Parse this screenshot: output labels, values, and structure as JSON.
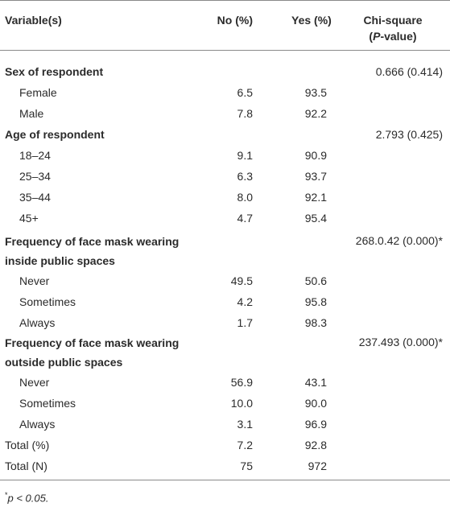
{
  "table": {
    "headers": {
      "variable": "Variable(s)",
      "no": "No (%)",
      "yes": "Yes (%)",
      "chi_line1": "Chi-square",
      "chi_line2_italic": "P",
      "chi_line2_rest": "-value)",
      "chi_line2_open": "("
    },
    "sex": {
      "label": "Sex of respondent",
      "chi": "0.666 (0.414)",
      "rows": [
        {
          "label": "Female",
          "no": "6.5",
          "yes": "93.5"
        },
        {
          "label": "Male",
          "no": "7.8",
          "yes": "92.2"
        }
      ]
    },
    "age": {
      "label": "Age of respondent",
      "chi": "2.793 (0.425)",
      "rows": [
        {
          "label": "18–24",
          "no": "9.1",
          "yes": "90.9"
        },
        {
          "label": "25–34",
          "no": "6.3",
          "yes": "93.7"
        },
        {
          "label": "35–44",
          "no": "8.0",
          "yes": "92.1"
        },
        {
          "label": "45+",
          "no": "4.7",
          "yes": "95.4"
        }
      ]
    },
    "inside": {
      "label_line1": "Frequency of face mask wearing",
      "label_line2": "inside public spaces",
      "chi": "268.0.42 (0.000)*",
      "rows": [
        {
          "label": "Never",
          "no": "49.5",
          "yes": "50.6"
        },
        {
          "label": "Sometimes",
          "no": "4.2",
          "yes": "95.8"
        },
        {
          "label": "Always",
          "no": "1.7",
          "yes": "98.3"
        }
      ]
    },
    "outside": {
      "label_line1": "Frequency of face mask wearing",
      "label_line2": "outside public spaces",
      "chi": "237.493 (0.000)*",
      "rows": [
        {
          "label": "Never",
          "no": "56.9",
          "yes": "43.1"
        },
        {
          "label": "Sometimes",
          "no": "10.0",
          "yes": "90.0"
        },
        {
          "label": "Always",
          "no": "3.1",
          "yes": "96.9"
        }
      ]
    },
    "totals": [
      {
        "label": "Total (%)",
        "no": "7.2",
        "yes": "92.8"
      },
      {
        "label": "Total (N)",
        "no": "75",
        "yes": "972"
      }
    ]
  },
  "footnote": {
    "marker": "*",
    "text": "p < 0.05."
  }
}
